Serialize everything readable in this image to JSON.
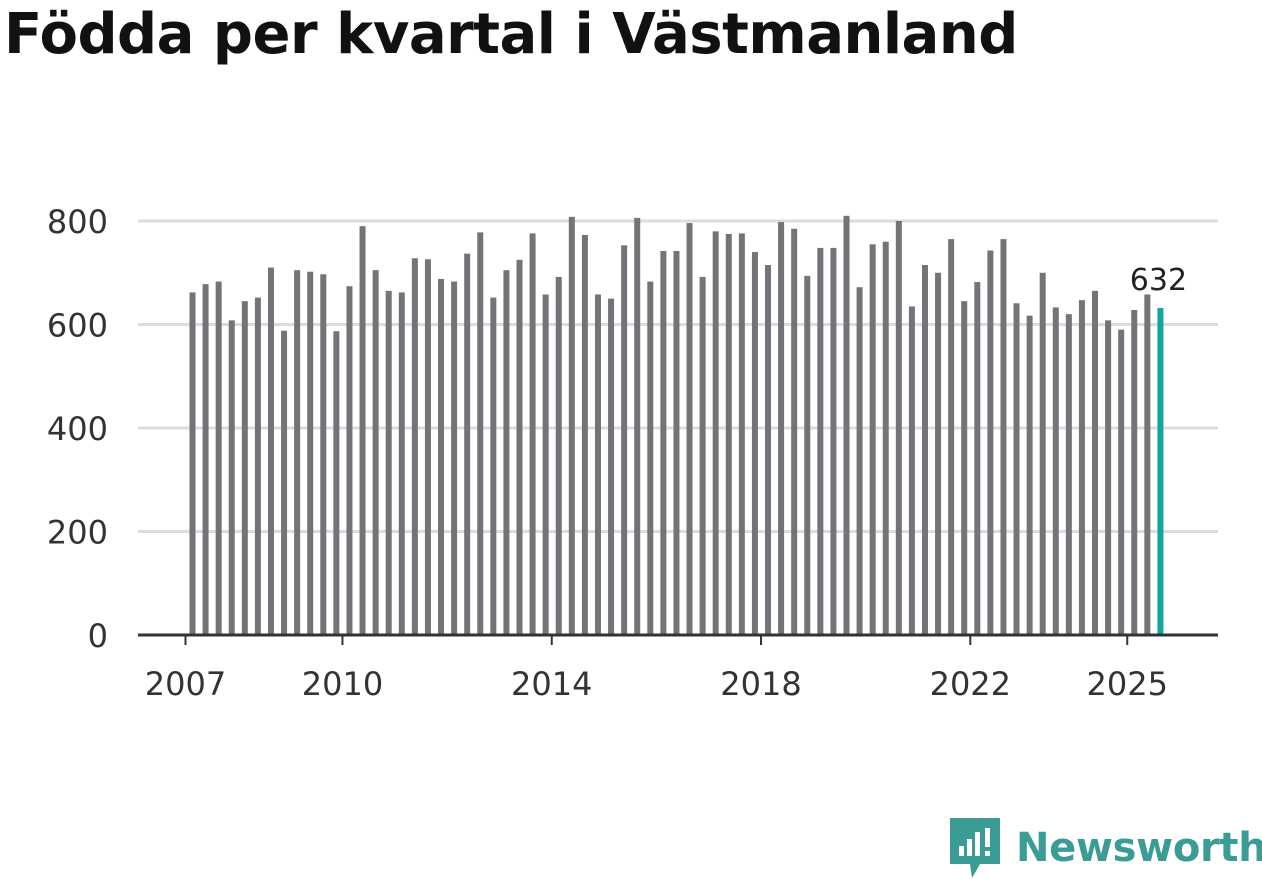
{
  "colors": {
    "bar": "#737378",
    "highlight": "#12a79d",
    "grid": "#dcdcdc",
    "axis": "#333333",
    "text": "#333333",
    "brand": "#3a9c95"
  },
  "brand": {
    "name": "Newsworthy"
  },
  "chart_data": {
    "type": "bar",
    "title": "Födda per kvartal i Västmanland",
    "xlabel": "",
    "ylabel": "",
    "ylim": [
      0,
      800
    ],
    "yticks": [
      0,
      200,
      400,
      600,
      800
    ],
    "yticklabels": [
      "0",
      "200",
      "400",
      "600",
      "800"
    ],
    "xticks": [
      {
        "label": "2007",
        "year": 2007
      },
      {
        "label": "2010",
        "year": 2010
      },
      {
        "label": "2014",
        "year": 2014
      },
      {
        "label": "2018",
        "year": 2018
      },
      {
        "label": "2022",
        "year": 2022
      },
      {
        "label": "2025",
        "year": 2025
      }
    ],
    "start_year": 2007,
    "start_quarter": 1,
    "values": [
      662,
      678,
      683,
      608,
      645,
      652,
      710,
      588,
      705,
      702,
      697,
      587,
      674,
      790,
      705,
      665,
      662,
      728,
      726,
      688,
      683,
      737,
      778,
      652,
      705,
      725,
      776,
      658,
      692,
      808,
      773,
      658,
      650,
      753,
      806,
      683,
      742,
      742,
      796,
      692,
      780,
      775,
      776,
      740,
      715,
      798,
      785,
      694,
      748,
      748,
      810,
      672,
      755,
      760,
      800,
      635,
      715,
      700,
      765,
      645,
      682,
      743,
      765,
      641,
      617,
      700,
      633,
      620,
      647,
      665,
      608,
      590,
      628,
      658,
      632
    ],
    "highlight_index": 74,
    "annotation": {
      "text": "632",
      "index": 74
    }
  }
}
